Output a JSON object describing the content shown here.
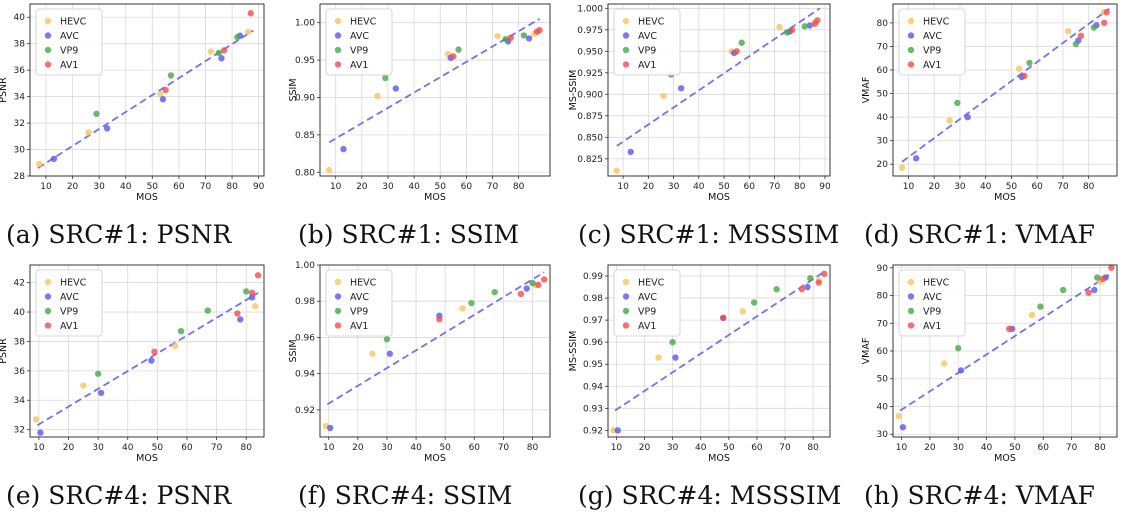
{
  "legend_labels": [
    "HEVC",
    "AVC",
    "VP9",
    "AV1"
  ],
  "series_colors": {
    "HEVC": "#f9c35e",
    "AVC": "#5757f0",
    "VP9": "#47a647",
    "AV1": "#f24c4c"
  },
  "fit_line_color": "#5a5aee",
  "grid": true,
  "legend_position": "top-left",
  "captions": [
    "(a) SRC#1: PSNR",
    "(b) SRC#1: SSIM",
    "(c) SRC#1: MSSSIM",
    "(d) SRC#1: VMAF",
    "(e) SRC#4: PSNR",
    "(f) SRC#4: SSIM",
    "(g) SRC#4: MSSSIM",
    "(h) SRC#4: VMAF"
  ],
  "chart_data": [
    {
      "type": "scatter",
      "xlabel": "MOS",
      "ylabel": "PSNR",
      "xlim": [
        4,
        92
      ],
      "ylim": [
        28,
        41
      ],
      "xticks": [
        "10",
        "20",
        "30",
        "40",
        "50",
        "60",
        "70",
        "80",
        "90"
      ],
      "yticks": [
        "28",
        "30",
        "32",
        "34",
        "36",
        "38",
        "40"
      ],
      "fit": [
        [
          7,
          28.6
        ],
        [
          88,
          39.0
        ]
      ],
      "series": [
        {
          "name": "HEVC",
          "points": [
            [
              7.5,
              28.9
            ],
            [
              26,
              31.3
            ],
            [
              53,
              34.2
            ],
            [
              72,
              37.4
            ],
            [
              86,
              38.9
            ]
          ]
        },
        {
          "name": "AVC",
          "points": [
            [
              13,
              29.3
            ],
            [
              33,
              31.6
            ],
            [
              54,
              33.8
            ],
            [
              76,
              36.9
            ],
            [
              83,
              38.6
            ]
          ]
        },
        {
          "name": "VP9",
          "points": [
            [
              29,
              32.7
            ],
            [
              57,
              35.6
            ],
            [
              75,
              37.3
            ],
            [
              82,
              38.5
            ]
          ]
        },
        {
          "name": "AV1",
          "points": [
            [
              55,
              34.5
            ],
            [
              77,
              37.5
            ],
            [
              87,
              40.3
            ]
          ]
        }
      ]
    },
    {
      "type": "scatter",
      "xlabel": "MOS",
      "ylabel": "SSIM",
      "xlim": [
        4,
        92
      ],
      "ylim": [
        0.795,
        1.025
      ],
      "xticks": [
        "10",
        "20",
        "30",
        "40",
        "50",
        "60",
        "70",
        "80"
      ],
      "yticks": [
        "0.80",
        "0.85",
        "0.90",
        "0.95",
        "1.00"
      ],
      "fit": [
        [
          7.5,
          0.84
        ],
        [
          88,
          1.005
        ]
      ],
      "series": [
        {
          "name": "HEVC",
          "points": [
            [
              7.5,
              0.803
            ],
            [
              26,
              0.902
            ],
            [
              53,
              0.958
            ],
            [
              72,
              0.982
            ],
            [
              86,
              0.985
            ]
          ]
        },
        {
          "name": "AVC",
          "points": [
            [
              13,
              0.831
            ],
            [
              33,
              0.912
            ],
            [
              54,
              0.953
            ],
            [
              76,
              0.975
            ],
            [
              84,
              0.979
            ]
          ]
        },
        {
          "name": "VP9",
          "points": [
            [
              29,
              0.926
            ],
            [
              57,
              0.964
            ],
            [
              75,
              0.978
            ],
            [
              82,
              0.983
            ]
          ]
        },
        {
          "name": "AV1",
          "points": [
            [
              55,
              0.955
            ],
            [
              77,
              0.98
            ],
            [
              87,
              0.988
            ],
            [
              88,
              0.99
            ]
          ]
        }
      ]
    },
    {
      "type": "scatter",
      "xlabel": "MOS",
      "ylabel": "MS-SSIM",
      "xlim": [
        4,
        92
      ],
      "ylim": [
        0.805,
        1.005
      ],
      "xticks": [
        "10",
        "20",
        "30",
        "40",
        "50",
        "60",
        "70",
        "80",
        "90"
      ],
      "yticks": [
        "0.825",
        "0.850",
        "0.875",
        "0.900",
        "0.925",
        "0.950",
        "0.975",
        "1.000"
      ],
      "fit": [
        [
          7.5,
          0.84
        ],
        [
          88,
          1.0
        ]
      ],
      "series": [
        {
          "name": "HEVC",
          "points": [
            [
              7.5,
              0.811
            ],
            [
              26,
              0.898
            ],
            [
              53,
              0.95
            ],
            [
              72,
              0.978
            ],
            [
              86,
              0.984
            ]
          ]
        },
        {
          "name": "AVC",
          "points": [
            [
              13,
              0.833
            ],
            [
              33,
              0.907
            ],
            [
              54,
              0.948
            ],
            [
              76,
              0.973
            ],
            [
              84,
              0.98
            ]
          ]
        },
        {
          "name": "VP9",
          "points": [
            [
              29,
              0.923
            ],
            [
              57,
              0.96
            ],
            [
              75,
              0.972
            ],
            [
              82,
              0.979
            ]
          ]
        },
        {
          "name": "AV1",
          "points": [
            [
              55,
              0.95
            ],
            [
              77,
              0.975
            ],
            [
              86,
              0.982
            ],
            [
              87,
              0.986
            ]
          ]
        }
      ]
    },
    {
      "type": "scatter",
      "xlabel": "MOS",
      "ylabel": "VMAF",
      "xlim": [
        4,
        91
      ],
      "ylim": [
        15,
        88
      ],
      "xticks": [
        "10",
        "20",
        "30",
        "40",
        "50",
        "60",
        "70",
        "80"
      ],
      "yticks": [
        "20",
        "30",
        "40",
        "50",
        "60",
        "70",
        "80"
      ],
      "fit": [
        [
          7.5,
          21
        ],
        [
          88,
          86
        ]
      ],
      "series": [
        {
          "name": "HEVC",
          "points": [
            [
              7.5,
              18.5
            ],
            [
              26,
              38.5
            ],
            [
              53,
              60.5
            ],
            [
              72,
              76.5
            ],
            [
              86,
              84.5
            ]
          ]
        },
        {
          "name": "AVC",
          "points": [
            [
              13,
              22.5
            ],
            [
              33,
              40.0
            ],
            [
              54,
              57.0
            ],
            [
              76,
              72.5
            ],
            [
              83,
              79.0
            ]
          ]
        },
        {
          "name": "VP9",
          "points": [
            [
              29,
              46.0
            ],
            [
              57,
              63.0
            ],
            [
              75,
              71.0
            ],
            [
              82,
              78.0
            ]
          ]
        },
        {
          "name": "AV1",
          "points": [
            [
              55,
              57.5
            ],
            [
              77,
              74.5
            ],
            [
              86,
              80.0
            ],
            [
              87,
              84.5
            ]
          ]
        }
      ]
    },
    {
      "type": "scatter",
      "xlabel": "MOS",
      "ylabel": "PSNR",
      "xlim": [
        7,
        86
      ],
      "ylim": [
        31.5,
        43.2
      ],
      "xticks": [
        "10",
        "20",
        "30",
        "40",
        "50",
        "60",
        "70",
        "80"
      ],
      "yticks": [
        "32",
        "34",
        "36",
        "38",
        "40",
        "42"
      ],
      "fit": [
        [
          9.5,
          32.3
        ],
        [
          84,
          41.3
        ]
      ],
      "series": [
        {
          "name": "HEVC",
          "points": [
            [
              9,
              32.7
            ],
            [
              25,
              35.0
            ],
            [
              56,
              37.7
            ],
            [
              83,
              40.4
            ]
          ]
        },
        {
          "name": "AVC",
          "points": [
            [
              10.5,
              31.8
            ],
            [
              31,
              34.5
            ],
            [
              48,
              36.7
            ],
            [
              78,
              39.5
            ],
            [
              82,
              41.0
            ]
          ]
        },
        {
          "name": "VP9",
          "points": [
            [
              30,
              35.8
            ],
            [
              58,
              38.7
            ],
            [
              67,
              40.1
            ],
            [
              80,
              41.4
            ]
          ]
        },
        {
          "name": "AV1",
          "points": [
            [
              49,
              37.3
            ],
            [
              77,
              39.9
            ],
            [
              82,
              41.3
            ],
            [
              84,
              42.5
            ]
          ]
        }
      ]
    },
    {
      "type": "scatter",
      "xlabel": "MOS",
      "ylabel": "SSIM",
      "xlim": [
        7,
        86
      ],
      "ylim": [
        0.905,
        1.0
      ],
      "xticks": [
        "10",
        "20",
        "30",
        "40",
        "50",
        "60",
        "70",
        "80"
      ],
      "yticks": [
        "0.92",
        "0.94",
        "0.96",
        "0.98",
        "1.00"
      ],
      "fit": [
        [
          9.5,
          0.923
        ],
        [
          84,
          0.996
        ]
      ],
      "series": [
        {
          "name": "HEVC",
          "points": [
            [
              9,
              0.911
            ],
            [
              25,
              0.951
            ],
            [
              56,
              0.976
            ],
            [
              81,
              0.989
            ]
          ]
        },
        {
          "name": "AVC",
          "points": [
            [
              10.5,
              0.91
            ],
            [
              31,
              0.951
            ],
            [
              48,
              0.972
            ],
            [
              78,
              0.987
            ]
          ]
        },
        {
          "name": "VP9",
          "points": [
            [
              30,
              0.959
            ],
            [
              59,
              0.979
            ],
            [
              67,
              0.985
            ],
            [
              80,
              0.99
            ]
          ]
        },
        {
          "name": "AV1",
          "points": [
            [
              48,
              0.97
            ],
            [
              76,
              0.984
            ],
            [
              82,
              0.989
            ],
            [
              84,
              0.992
            ]
          ]
        }
      ]
    },
    {
      "type": "scatter",
      "xlabel": "MOS",
      "ylabel": "MS-SSIM",
      "xlim": [
        7,
        86
      ],
      "ylim": [
        0.917,
        0.995
      ],
      "xticks": [
        "10",
        "20",
        "30",
        "40",
        "50",
        "60",
        "70",
        "80"
      ],
      "yticks": [
        "0.92",
        "0.93",
        "0.94",
        "0.95",
        "0.96",
        "0.97",
        "0.98",
        "0.99"
      ],
      "fit": [
        [
          9.5,
          0.929
        ],
        [
          84,
          0.992
        ]
      ],
      "series": [
        {
          "name": "HEVC",
          "points": [
            [
              9,
              0.92
            ],
            [
              25,
              0.953
            ],
            [
              55,
              0.974
            ],
            [
              82,
              0.988
            ]
          ]
        },
        {
          "name": "AVC",
          "points": [
            [
              10.5,
              0.92
            ],
            [
              31,
              0.953
            ],
            [
              48,
              0.971
            ],
            [
              78,
              0.985
            ]
          ]
        },
        {
          "name": "VP9",
          "points": [
            [
              30,
              0.96
            ],
            [
              59,
              0.978
            ],
            [
              67,
              0.984
            ],
            [
              79,
              0.989
            ]
          ]
        },
        {
          "name": "AV1",
          "points": [
            [
              48,
              0.971
            ],
            [
              76,
              0.984
            ],
            [
              82,
              0.987
            ],
            [
              84,
              0.991
            ]
          ]
        }
      ]
    },
    {
      "type": "scatter",
      "xlabel": "MOS",
      "ylabel": "VMAF",
      "xlim": [
        7,
        86
      ],
      "ylim": [
        29,
        91
      ],
      "xticks": [
        "10",
        "20",
        "30",
        "40",
        "50",
        "60",
        "70",
        "80"
      ],
      "yticks": [
        "30",
        "40",
        "50",
        "60",
        "70",
        "80",
        "90"
      ],
      "fit": [
        [
          9.5,
          38.5
        ],
        [
          84,
          88
        ]
      ],
      "series": [
        {
          "name": "HEVC",
          "points": [
            [
              9,
              36.5
            ],
            [
              25,
              55.5
            ],
            [
              56,
              73.0
            ],
            [
              80,
              85.0
            ]
          ]
        },
        {
          "name": "AVC",
          "points": [
            [
              10.5,
              32.5
            ],
            [
              31,
              53.0
            ],
            [
              49,
              68.0
            ],
            [
              78,
              82.0
            ],
            [
              82,
              86.5
            ]
          ]
        },
        {
          "name": "VP9",
          "points": [
            [
              30,
              61.0
            ],
            [
              59,
              76.0
            ],
            [
              67,
              82.0
            ],
            [
              79,
              86.5
            ]
          ]
        },
        {
          "name": "AV1",
          "points": [
            [
              48,
              68.0
            ],
            [
              76,
              81.0
            ],
            [
              81,
              86.0
            ],
            [
              84,
              90.0
            ]
          ]
        }
      ]
    }
  ]
}
